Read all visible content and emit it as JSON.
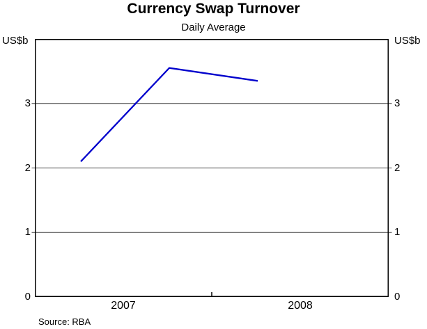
{
  "header": {
    "title": "Currency Swap Turnover",
    "subtitle": "Daily Average"
  },
  "footer": {
    "source": "Source: RBA"
  },
  "chart_data": {
    "type": "line",
    "title": "Currency Swap Turnover",
    "subtitle": "Daily Average",
    "ylabel_left": "US$b",
    "ylabel_right": "US$b",
    "ylim": [
      0,
      4
    ],
    "yticks": [
      0,
      1,
      2,
      3
    ],
    "gridlines": [
      1,
      2,
      3
    ],
    "grid_on": true,
    "x_axis_labels": [
      "2007",
      "2008"
    ],
    "x_range_years": [
      2007.0,
      2009.0
    ],
    "x_boundary_ticks_years": [
      2008.0
    ],
    "legend": "none",
    "series": [
      {
        "name": "currency-swap-turnover",
        "color": "#0000cc",
        "points": [
          {
            "x_year": 2007.26,
            "value": 2.1
          },
          {
            "x_year": 2007.76,
            "value": 3.55
          },
          {
            "x_year": 2008.26,
            "value": 3.35
          }
        ]
      }
    ],
    "colors": {
      "line": "#0000cc",
      "gridline": "#3f3f3f",
      "border": "#000000",
      "background": "#ffffff"
    },
    "source": "Source: RBA"
  }
}
